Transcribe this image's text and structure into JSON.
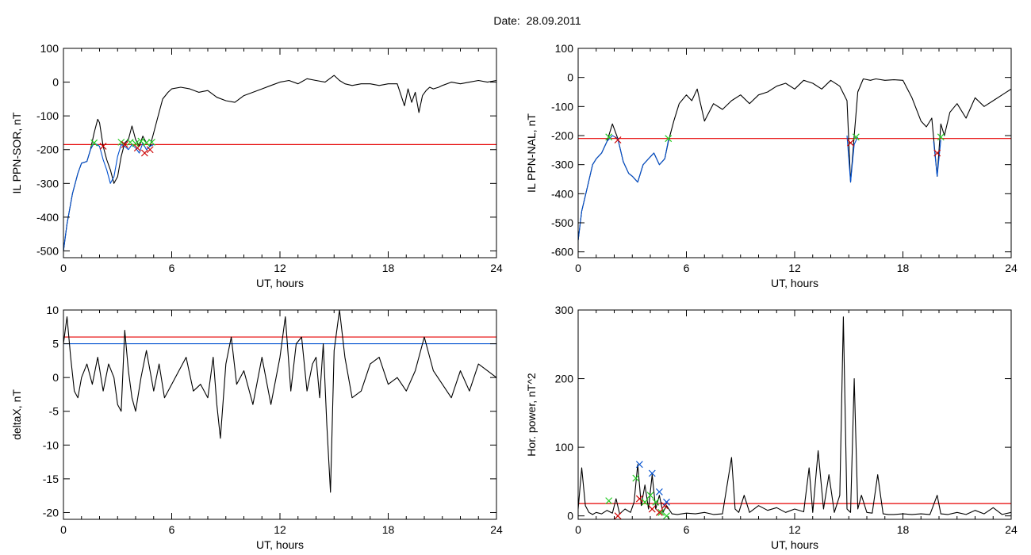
{
  "figure": {
    "title": "Date:  28.09.2011"
  },
  "chart_data": [
    {
      "type": "line",
      "xlabel": "UT, hours",
      "ylabel": "IL PPN-SOR, nT",
      "xlim": [
        0,
        24
      ],
      "ylim": [
        -520,
        100
      ],
      "xticks": [
        0,
        6,
        12,
        18,
        24
      ],
      "yticks": [
        100,
        0,
        -100,
        -200,
        -300,
        -400,
        -500
      ],
      "threshold_lines": [
        {
          "color": "#e60000",
          "y": -185
        }
      ],
      "series": [
        {
          "color": "#000000",
          "x": [
            0,
            0.2,
            0.5,
            0.8,
            1.0,
            1.3,
            1.5,
            1.7,
            1.9,
            2.0,
            2.2,
            2.4,
            2.6,
            2.8,
            3.0,
            3.2,
            3.4,
            3.6,
            3.8,
            4.0,
            4.2,
            4.4,
            4.6,
            4.8,
            5.0,
            5.2,
            5.5,
            5.8,
            6.0,
            6.5,
            7.0,
            7.5,
            8.0,
            8.5,
            9.0,
            9.5,
            10.0,
            10.5,
            11.0,
            11.5,
            12.0,
            12.5,
            13.0,
            13.5,
            14.0,
            14.5,
            15.0,
            15.3,
            15.6,
            16.0,
            16.5,
            17.0,
            17.5,
            18.0,
            18.5,
            18.9,
            19.1,
            19.3,
            19.5,
            19.7,
            19.9,
            20.1,
            20.3,
            20.5,
            20.8,
            21.0,
            21.5,
            22.0,
            22.5,
            23.0,
            23.5,
            24.0
          ],
          "y": [
            -500,
            -420,
            -330,
            -270,
            -240,
            -235,
            -200,
            -150,
            -110,
            -120,
            -190,
            -230,
            -260,
            -300,
            -280,
            -220,
            -180,
            -170,
            -130,
            -170,
            -190,
            -160,
            -180,
            -190,
            -150,
            -110,
            -50,
            -30,
            -20,
            -15,
            -20,
            -30,
            -25,
            -45,
            -55,
            -60,
            -40,
            -30,
            -20,
            -10,
            0,
            5,
            -5,
            10,
            5,
            0,
            20,
            5,
            -5,
            -10,
            -5,
            -5,
            -10,
            -5,
            -5,
            -70,
            -20,
            -60,
            -30,
            -90,
            -40,
            -25,
            -15,
            -20,
            -15,
            -10,
            0,
            -5,
            0,
            5,
            0,
            5
          ]
        },
        {
          "color": "#0050d0",
          "x": [
            0,
            0.2,
            0.5,
            0.8,
            1.0,
            1.3,
            1.5,
            1.7,
            2.0,
            2.2,
            2.4,
            2.6,
            2.8,
            3.0,
            3.2,
            3.4,
            3.6,
            3.8,
            4.0,
            4.2,
            4.4,
            4.6,
            4.8,
            5.0
          ],
          "y": [
            -500,
            -420,
            -330,
            -270,
            -240,
            -235,
            -200,
            -180,
            -190,
            -230,
            -260,
            -300,
            -280,
            -220,
            -185,
            -190,
            -200,
            -185,
            -195,
            -210,
            -180,
            -200,
            -190,
            -185
          ]
        }
      ],
      "markers": [
        {
          "color": "#22cc22",
          "x": [
            1.7,
            3.2,
            3.7,
            4.0,
            4.3,
            4.6,
            4.9
          ],
          "y": [
            -180,
            -178,
            -178,
            -182,
            -175,
            -180,
            -178
          ]
        },
        {
          "color": "#cc0000",
          "x": [
            2.2,
            3.4,
            4.1,
            4.5,
            4.8
          ],
          "y": [
            -190,
            -185,
            -195,
            -210,
            -200
          ]
        }
      ]
    },
    {
      "type": "line",
      "xlabel": "UT, hours",
      "ylabel": "IL PPN-NAL, nT",
      "xlim": [
        0,
        24
      ],
      "ylim": [
        -620,
        100
      ],
      "xticks": [
        0,
        6,
        12,
        18,
        24
      ],
      "yticks": [
        100,
        0,
        -100,
        -200,
        -300,
        -400,
        -500,
        -600
      ],
      "threshold_lines": [
        {
          "color": "#e60000",
          "y": -210
        }
      ],
      "series": [
        {
          "color": "#000000",
          "x": [
            0,
            0.2,
            0.5,
            0.8,
            1.0,
            1.3,
            1.6,
            1.9,
            2.2,
            2.5,
            2.8,
            3.0,
            3.3,
            3.6,
            3.9,
            4.2,
            4.5,
            4.8,
            5.0,
            5.3,
            5.6,
            6.0,
            6.3,
            6.6,
            7.0,
            7.5,
            8.0,
            8.5,
            9.0,
            9.5,
            10.0,
            10.5,
            11.0,
            11.5,
            12.0,
            12.5,
            13.0,
            13.5,
            14.0,
            14.5,
            14.9,
            15.1,
            15.3,
            15.5,
            15.8,
            16.2,
            16.5,
            17.0,
            17.5,
            18.0,
            18.5,
            19.0,
            19.3,
            19.6,
            19.9,
            20.1,
            20.3,
            20.6,
            21.0,
            21.5,
            22.0,
            22.5,
            23.0,
            23.5,
            24.0
          ],
          "y": [
            -560,
            -460,
            -380,
            -300,
            -280,
            -260,
            -220,
            -160,
            -210,
            -290,
            -330,
            -340,
            -360,
            -300,
            -280,
            -260,
            -300,
            -280,
            -220,
            -150,
            -90,
            -60,
            -80,
            -40,
            -150,
            -90,
            -110,
            -80,
            -60,
            -90,
            -60,
            -50,
            -30,
            -20,
            -40,
            -10,
            -20,
            -40,
            -10,
            -30,
            -80,
            -360,
            -200,
            -50,
            -5,
            -10,
            -5,
            -10,
            -8,
            -10,
            -70,
            -150,
            -170,
            -140,
            -340,
            -160,
            -200,
            -120,
            -90,
            -140,
            -70,
            -100,
            -80,
            -60,
            -40
          ]
        },
        {
          "color": "#0050d0",
          "x": [
            0,
            0.2,
            0.5,
            0.8,
            1.0,
            1.3,
            1.6,
            1.9,
            2.2,
            2.5,
            2.8,
            3.0,
            3.3,
            3.6,
            3.9,
            4.2,
            4.5,
            4.8,
            5.0
          ],
          "y": [
            -560,
            -460,
            -380,
            -300,
            -280,
            -260,
            -220,
            -200,
            -210,
            -290,
            -330,
            -340,
            -360,
            -300,
            -280,
            -260,
            -300,
            -280,
            -215
          ]
        },
        {
          "color": "#0050d0",
          "x": [
            14.9,
            15.1,
            15.3,
            15.5
          ],
          "y": [
            -200,
            -360,
            -230,
            -205
          ]
        },
        {
          "color": "#0050d0",
          "x": [
            19.7,
            19.9,
            20.1
          ],
          "y": [
            -220,
            -340,
            -215
          ]
        }
      ],
      "markers": [
        {
          "color": "#22cc22",
          "x": [
            1.7,
            5.0,
            15.4,
            20.1
          ],
          "y": [
            -205,
            -210,
            -205,
            -205
          ]
        },
        {
          "color": "#cc0000",
          "x": [
            2.2,
            15.1,
            19.9
          ],
          "y": [
            -215,
            -225,
            -260
          ]
        }
      ]
    },
    {
      "type": "line",
      "xlabel": "UT, hours",
      "ylabel": "deltaX, nT",
      "xlim": [
        0,
        24
      ],
      "ylim": [
        -21,
        10
      ],
      "xticks": [
        0,
        6,
        12,
        18,
        24
      ],
      "yticks": [
        10,
        5,
        0,
        -5,
        -10,
        -15,
        -20
      ],
      "threshold_lines": [
        {
          "color": "#e60000",
          "y": 6
        },
        {
          "color": "#0050d0",
          "y": 5
        }
      ],
      "series": [
        {
          "color": "#000000",
          "x": [
            0,
            0.2,
            0.4,
            0.6,
            0.8,
            1.0,
            1.3,
            1.6,
            1.9,
            2.2,
            2.5,
            2.8,
            3.0,
            3.2,
            3.4,
            3.6,
            3.8,
            4.0,
            4.3,
            4.6,
            5.0,
            5.3,
            5.6,
            6.0,
            6.4,
            6.8,
            7.2,
            7.6,
            8.0,
            8.3,
            8.5,
            8.7,
            9.0,
            9.3,
            9.6,
            10.0,
            10.5,
            11.0,
            11.5,
            12.0,
            12.3,
            12.6,
            12.9,
            13.2,
            13.5,
            13.8,
            14.0,
            14.2,
            14.4,
            14.6,
            14.8,
            15.0,
            15.3,
            15.6,
            16.0,
            16.5,
            17.0,
            17.5,
            18.0,
            18.5,
            19.0,
            19.5,
            20.0,
            20.5,
            21.0,
            21.5,
            22.0,
            22.5,
            23.0,
            23.5,
            24.0
          ],
          "y": [
            5,
            9,
            3,
            -2,
            -3,
            0,
            2,
            -1,
            3,
            -2,
            2,
            0,
            -4,
            -5,
            7,
            1,
            -3,
            -5,
            0,
            4,
            -2,
            2,
            -3,
            -1,
            1,
            3,
            -2,
            -1,
            -3,
            3,
            -4,
            -9,
            2,
            6,
            -1,
            1,
            -4,
            3,
            -4,
            3,
            9,
            -2,
            5,
            6,
            -2,
            2,
            3,
            -3,
            5,
            -7,
            -17,
            4,
            10,
            3,
            -3,
            -2,
            2,
            3,
            -1,
            0,
            -2,
            1,
            6,
            1,
            -1,
            -3,
            1,
            -2,
            2,
            1,
            0
          ]
        }
      ]
    },
    {
      "type": "line",
      "xlabel": "UT, hours",
      "ylabel": "Hor. power, nT^2",
      "xlim": [
        0,
        24
      ],
      "ylim": [
        -5,
        300
      ],
      "xticks": [
        0,
        6,
        12,
        18,
        24
      ],
      "yticks": [
        300,
        200,
        100,
        0
      ],
      "threshold_lines": [
        {
          "color": "#e60000",
          "y": 18
        }
      ],
      "series": [
        {
          "color": "#000000",
          "x": [
            0,
            0.2,
            0.4,
            0.6,
            0.8,
            1.0,
            1.3,
            1.6,
            1.9,
            2.1,
            2.3,
            2.6,
            2.9,
            3.1,
            3.3,
            3.5,
            3.7,
            3.9,
            4.1,
            4.3,
            4.5,
            4.7,
            4.9,
            5.2,
            5.5,
            6.0,
            6.5,
            7.0,
            7.5,
            8.0,
            8.5,
            8.7,
            8.9,
            9.2,
            9.5,
            10.0,
            10.5,
            11.0,
            11.5,
            12.0,
            12.5,
            12.8,
            13.0,
            13.3,
            13.6,
            13.9,
            14.2,
            14.5,
            14.7,
            14.9,
            15.1,
            15.3,
            15.5,
            15.7,
            16.0,
            16.3,
            16.6,
            16.9,
            17.2,
            17.5,
            18.0,
            18.5,
            19.0,
            19.5,
            19.9,
            20.1,
            20.5,
            21.0,
            21.5,
            22.0,
            22.5,
            23.0,
            23.5,
            24.0
          ],
          "y": [
            10,
            70,
            15,
            5,
            2,
            5,
            3,
            8,
            4,
            25,
            3,
            10,
            5,
            20,
            75,
            15,
            45,
            10,
            60,
            10,
            30,
            5,
            15,
            3,
            2,
            4,
            3,
            5,
            2,
            3,
            85,
            10,
            5,
            30,
            5,
            15,
            8,
            12,
            5,
            10,
            6,
            70,
            5,
            95,
            10,
            60,
            5,
            30,
            290,
            10,
            5,
            200,
            10,
            30,
            5,
            4,
            60,
            3,
            2,
            2,
            3,
            2,
            3,
            2,
            30,
            3,
            2,
            5,
            2,
            8,
            3,
            12,
            2,
            5
          ]
        }
      ],
      "markers": [
        {
          "color": "#22cc22",
          "x": [
            1.7,
            3.2,
            3.7,
            4.0,
            4.3,
            4.6,
            4.9
          ],
          "y": [
            22,
            55,
            20,
            30,
            20,
            5,
            0
          ]
        },
        {
          "color": "#cc0000",
          "x": [
            2.2,
            3.4,
            4.1,
            4.5,
            4.8
          ],
          "y": [
            0,
            25,
            10,
            5,
            15
          ]
        },
        {
          "color": "#0050d0",
          "x": [
            3.4,
            4.1,
            4.5,
            4.9
          ],
          "y": [
            75,
            62,
            35,
            20
          ]
        }
      ]
    }
  ]
}
